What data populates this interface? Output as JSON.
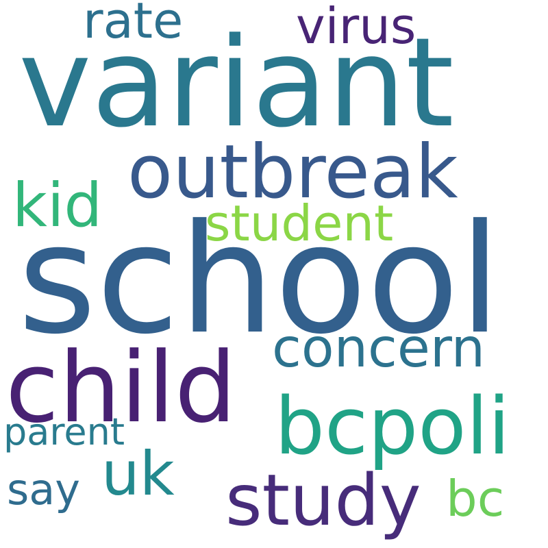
{
  "wordcloud": {
    "words": [
      {
        "key": "variant",
        "text": "variant",
        "color": "#2a788e"
      },
      {
        "key": "school",
        "text": "school",
        "color": "#33608d"
      },
      {
        "key": "outbreak",
        "text": "outbreak",
        "color": "#38598c"
      },
      {
        "key": "child",
        "text": "child",
        "color": "#482173"
      },
      {
        "key": "bcpoli",
        "text": "bcpoli",
        "color": "#20a386"
      },
      {
        "key": "study",
        "text": "study",
        "color": "#472c7a"
      },
      {
        "key": "concern",
        "text": "concern",
        "color": "#2c728e"
      },
      {
        "key": "student",
        "text": "student",
        "color": "#8bd646"
      },
      {
        "key": "kid",
        "text": "kid",
        "color": "#32b67a"
      },
      {
        "key": "virus",
        "text": "virus",
        "color": "#482475"
      },
      {
        "key": "rate",
        "text": "rate",
        "color": "#2d708e"
      },
      {
        "key": "uk",
        "text": "uk",
        "color": "#23898e"
      },
      {
        "key": "say",
        "text": "say",
        "color": "#2f6c8e"
      },
      {
        "key": "bc",
        "text": "bc",
        "color": "#6ccd5a"
      },
      {
        "key": "parent",
        "text": "parent",
        "color": "#297b8e"
      }
    ]
  }
}
